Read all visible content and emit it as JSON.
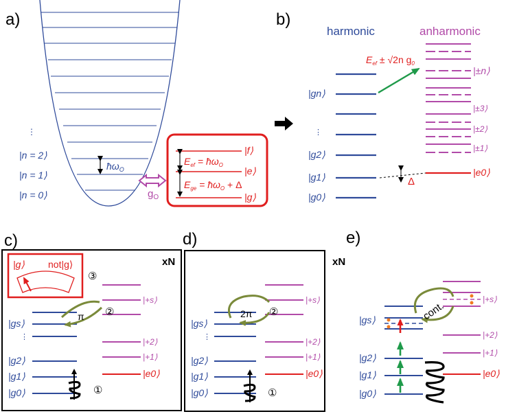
{
  "panels": {
    "a": {
      "label": "a)",
      "levels": [
        "|n = 2⟩",
        "|n = 1⟩",
        "|n = 0⟩"
      ],
      "ellipsis": "⋮",
      "spacing": "ħω",
      "spacing_sub": "O",
      "coupling": "g",
      "coupling_sub": "O",
      "atom_levels": [
        "|f⟩",
        "|e⟩",
        "|g⟩"
      ],
      "E_ef": "E",
      "E_ef_sub": "ef",
      "E_ef_rhs": " = ħω",
      "E_ef_rhs_sub": "O",
      "E_ge": "E",
      "E_ge_sub": "ge",
      "E_ge_rhs": " = ħω",
      "E_ge_rhs_sub": "O",
      "E_ge_tail": " + Δ"
    },
    "b": {
      "label": "b)",
      "harmonic": "harmonic",
      "anharmonic": "anharmonic",
      "energy_E": "E",
      "energy_sub": "ef",
      "energy_pm": " ± √2n g",
      "energy_pm_sub": "0",
      "left_levels": [
        "|gn⟩",
        "|g2⟩",
        "|g1⟩",
        "|g0⟩"
      ],
      "right_levels": [
        "|±n⟩",
        "|±3⟩",
        "|±2⟩",
        "|±1⟩",
        "|e0⟩"
      ],
      "ellipsis": "⋮",
      "detuning": "Δ"
    },
    "c": {
      "label": "c)",
      "xn": "xN",
      "inset_g": "|g⟩",
      "inset_not": "not|g⟩",
      "pi": "π",
      "step1": "①",
      "step2": "②",
      "step3": "③",
      "left_levels": [
        "|gs⟩",
        "|g2⟩",
        "|g1⟩",
        "|g0⟩"
      ],
      "right_levels": [
        "|+s⟩",
        "|+2⟩",
        "|+1⟩",
        "|e0⟩"
      ],
      "ellipsis": "⋮"
    },
    "d": {
      "label": "d)",
      "xn": "xN",
      "two_pi": "2π",
      "step1": "①",
      "step2": "②",
      "left_levels": [
        "|gs⟩",
        "|g2⟩",
        "|g1⟩",
        "|g0⟩"
      ],
      "right_levels": [
        "|+s⟩",
        "|+2⟩",
        "|+1⟩",
        "|e0⟩"
      ],
      "ellipsis": "⋮"
    },
    "e": {
      "label": "e)",
      "cont": "cont.",
      "left_levels": [
        "|gs⟩",
        "|g2⟩",
        "|g1⟩",
        "|g0⟩"
      ],
      "right_levels": [
        "|+s⟩",
        "|+2⟩",
        "|+1⟩",
        "|e0⟩"
      ]
    }
  },
  "colors": {
    "harmonic": "#2e4a9a",
    "anharmonic": "#b14aa8",
    "atom": "#e01e1e",
    "green": "#1f9a4a",
    "olive": "#7a8a3a",
    "orange": "#f07a20"
  }
}
